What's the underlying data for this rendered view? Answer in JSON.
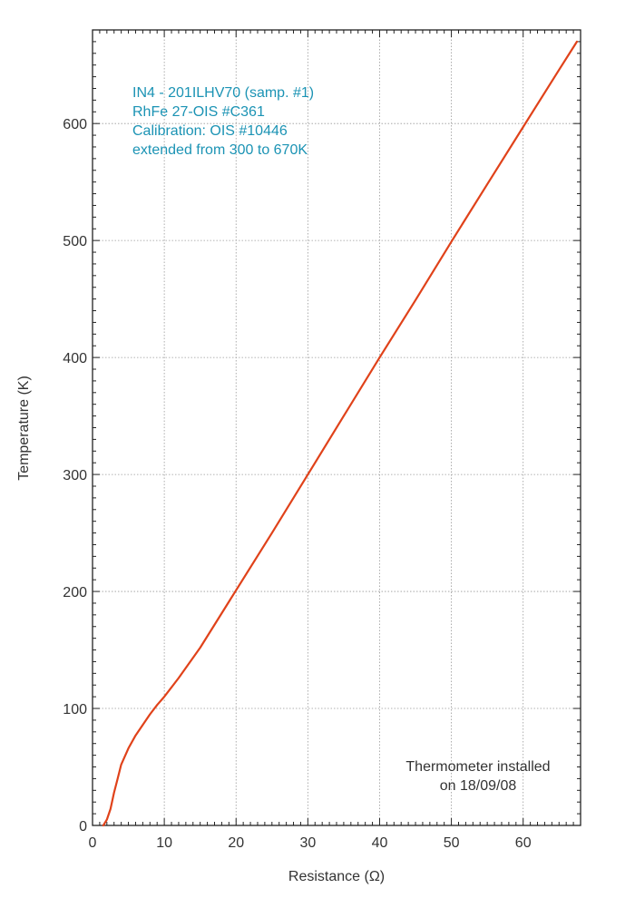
{
  "chart_data": {
    "type": "line",
    "title": "",
    "xlabel": "Resistance (Ω)",
    "ylabel": "Temperature (K)",
    "xlim": [
      0,
      68
    ],
    "ylim": [
      0,
      680
    ],
    "x_ticks": [
      0,
      10,
      20,
      30,
      40,
      50,
      60
    ],
    "y_ticks": [
      0,
      100,
      200,
      300,
      400,
      500,
      600
    ],
    "grid": true,
    "series": [
      {
        "color": "#e0421a",
        "x": [
          1.5,
          2.0,
          2.5,
          3.0,
          3.5,
          4.0,
          5.0,
          6.0,
          7.0,
          8.0,
          9.0,
          10.0,
          12.0,
          15.0,
          20.0,
          25.0,
          30.0,
          35.0,
          40.0,
          45.0,
          50.0,
          55.0,
          60.0,
          65.0,
          67.5
        ],
        "y": [
          0,
          5,
          14,
          28,
          40,
          52,
          66,
          77,
          86,
          95,
          103,
          110,
          126,
          152,
          201,
          250,
          300,
          350,
          400,
          449,
          499,
          548,
          597,
          646,
          670
        ]
      }
    ],
    "annotations": [
      {
        "color": "#1b93b4",
        "lines": [
          "IN4 - 201ILHV70 (samp. #1)",
          "RhFe 27-OIS #C361",
          "Calibration: OIS #10446",
          "extended from 300 to 670K"
        ]
      },
      {
        "color": "#333333",
        "lines": [
          "Thermometer installed",
          "on 18/09/08"
        ]
      }
    ]
  }
}
